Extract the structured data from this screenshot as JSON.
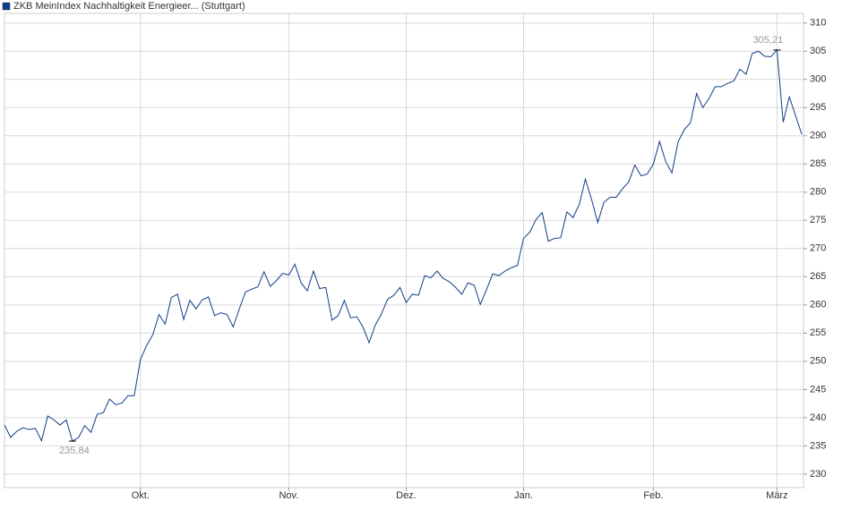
{
  "chart_data": {
    "type": "line",
    "title": "ZKB MeinIndex Nachhaltigkeit Energieer... (Stuttgart)",
    "color": "#0f3d87",
    "grid": true,
    "categories": [
      null,
      null,
      null,
      null,
      null,
      null,
      null,
      null,
      null,
      null,
      null,
      null,
      null,
      null,
      null,
      null,
      null,
      null,
      null,
      null,
      null,
      null,
      "Okt.",
      null,
      null,
      null,
      null,
      null,
      null,
      null,
      null,
      null,
      null,
      null,
      null,
      null,
      null,
      null,
      null,
      null,
      null,
      null,
      null,
      null,
      null,
      null,
      "Nov.",
      null,
      null,
      null,
      null,
      null,
      null,
      null,
      null,
      null,
      null,
      null,
      null,
      null,
      null,
      null,
      null,
      null,
      null,
      "Dez.",
      null,
      null,
      null,
      null,
      null,
      null,
      null,
      null,
      null,
      null,
      null,
      null,
      null,
      null,
      null,
      null,
      null,
      null,
      "Jan.",
      null,
      null,
      null,
      null,
      null,
      null,
      null,
      null,
      null,
      null,
      null,
      null,
      null,
      null,
      null,
      null,
      null,
      null,
      null,
      null,
      "Feb.",
      null,
      null,
      null,
      null,
      null,
      null,
      null,
      null,
      null,
      null,
      null,
      null,
      null,
      null,
      null,
      null,
      null,
      null,
      null,
      "März",
      null,
      null,
      null,
      null
    ],
    "values": [
      238.7,
      236.5,
      237.6,
      238.2,
      237.9,
      238.1,
      235.9,
      240.3,
      239.6,
      238.7,
      239.6,
      235.84,
      236.5,
      238.6,
      237.4,
      240.6,
      240.9,
      243.3,
      242.3,
      242.6,
      243.9,
      243.9,
      250.3,
      252.8,
      254.7,
      258.3,
      256.6,
      261.3,
      261.9,
      257.4,
      260.8,
      259.3,
      260.9,
      261.4,
      258.1,
      258.6,
      258.3,
      256.1,
      259.3,
      262.3,
      262.8,
      263.2,
      265.9,
      263.3,
      264.3,
      265.6,
      265.3,
      267.2,
      263.9,
      262.5,
      266.0,
      262.9,
      263.1,
      257.3,
      258.1,
      260.8,
      257.7,
      257.9,
      256.1,
      253.3,
      256.4,
      258.4,
      261.0,
      261.7,
      263.1,
      260.4,
      261.9,
      261.7,
      265.2,
      264.8,
      266.0,
      264.7,
      264.1,
      263.1,
      261.9,
      263.9,
      263.5,
      260.1,
      262.7,
      265.5,
      265.2,
      266.0,
      266.6,
      267.0,
      271.8,
      272.9,
      275.1,
      276.4,
      271.3,
      271.8,
      271.9,
      276.5,
      275.5,
      277.8,
      282.3,
      278.7,
      274.6,
      278.2,
      279.1,
      279.1,
      280.6,
      281.8,
      284.8,
      282.9,
      283.2,
      285.0,
      289.0,
      285.4,
      283.4,
      288.9,
      291.1,
      292.3,
      297.5,
      295.0,
      296.6,
      298.7,
      298.7,
      299.3,
      299.7,
      301.8,
      300.9,
      304.6,
      305.0,
      304.1,
      304.0,
      305.21,
      292.4,
      296.9,
      293.6,
      290.3
    ],
    "value_labels": [
      null,
      null,
      null,
      null,
      null,
      null,
      null,
      null,
      null,
      null,
      null,
      "235,84",
      null,
      null,
      null,
      null,
      null,
      null,
      null,
      null,
      null,
      null,
      null,
      null,
      null,
      null,
      null,
      null,
      null,
      null,
      null,
      null,
      null,
      null,
      null,
      null,
      null,
      null,
      null,
      null,
      null,
      null,
      null,
      null,
      null,
      null,
      null,
      null,
      null,
      null,
      null,
      null,
      null,
      null,
      null,
      null,
      null,
      null,
      null,
      null,
      null,
      null,
      null,
      null,
      null,
      null,
      null,
      null,
      null,
      null,
      null,
      null,
      null,
      null,
      null,
      null,
      null,
      null,
      null,
      null,
      null,
      null,
      null,
      null,
      null,
      null,
      null,
      null,
      null,
      null,
      null,
      null,
      null,
      null,
      null,
      null,
      null,
      null,
      null,
      null,
      null,
      null,
      null,
      null,
      null,
      null,
      null,
      null,
      null,
      null,
      null,
      null,
      null,
      null,
      null,
      null,
      null,
      null,
      null,
      null,
      null,
      null,
      null,
      null,
      null,
      "305,21",
      null,
      null,
      null,
      null
    ],
    "ylim": [
      227.6,
      311.7
    ],
    "yticks": [
      230,
      235,
      240,
      245,
      250,
      255,
      260,
      265,
      270,
      275,
      280,
      285,
      290,
      295,
      300,
      305,
      310
    ]
  }
}
